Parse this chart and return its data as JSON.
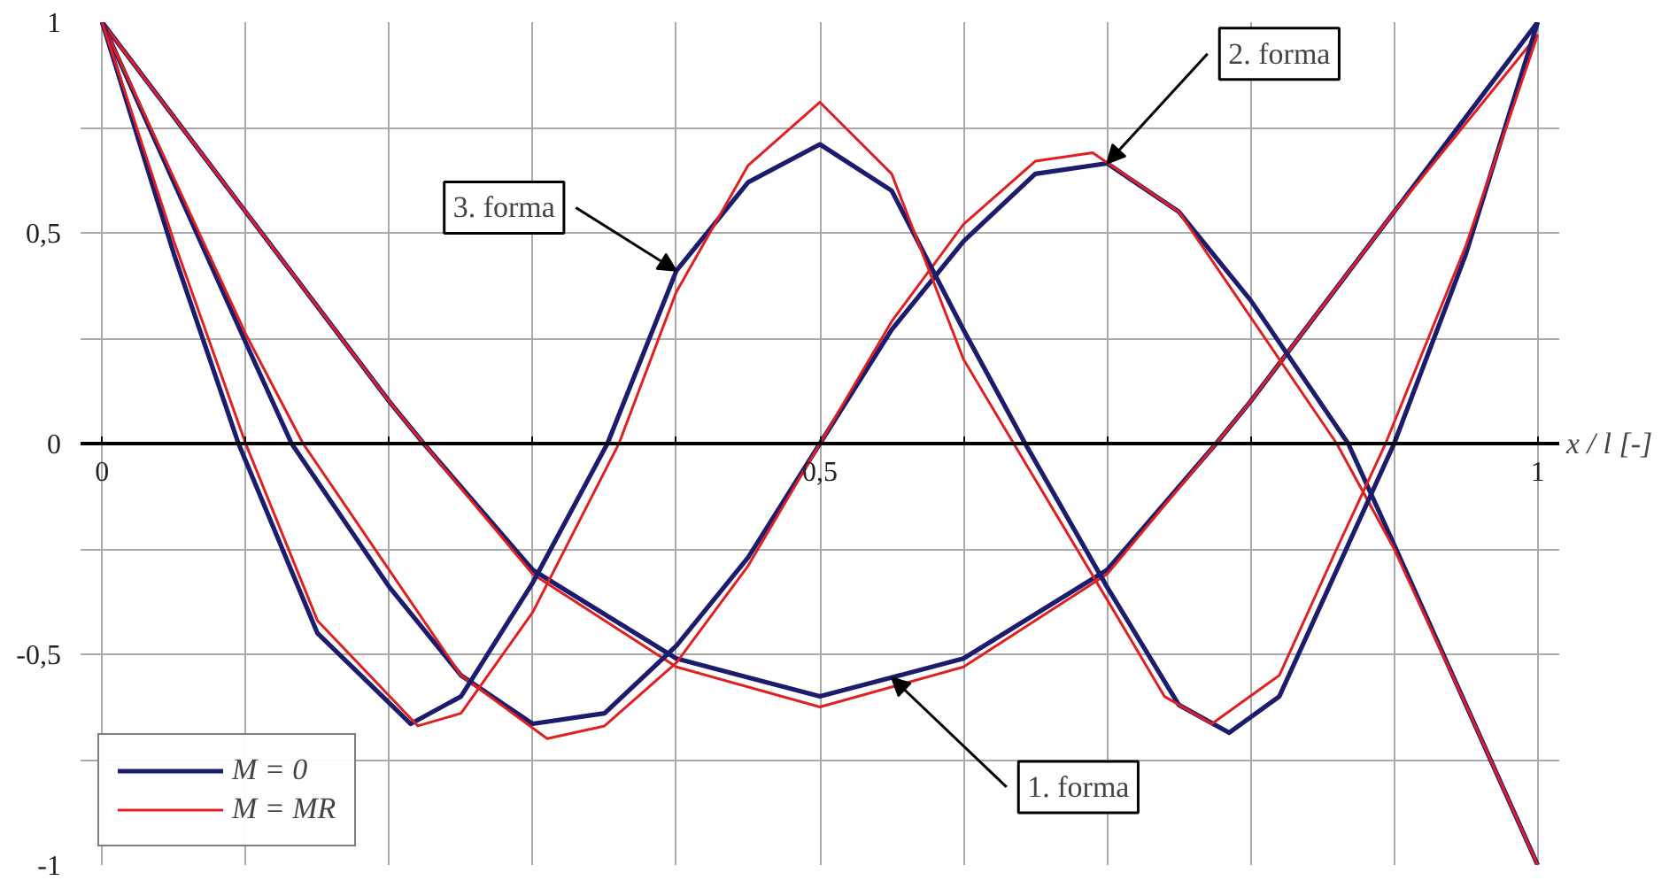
{
  "chart_data": {
    "type": "line",
    "xlabel": "x / l  [-]",
    "xlim": [
      0,
      1
    ],
    "ylim": [
      -1,
      1
    ],
    "xticks": [
      0,
      {
        "value": 0.1,
        "label": null
      },
      {
        "value": 0.2,
        "label": null
      },
      {
        "value": 0.3,
        "label": null
      },
      {
        "value": 0.4,
        "label": null
      },
      {
        "value": 0.5,
        "label": "0,5"
      },
      {
        "value": 0.6,
        "label": null
      },
      {
        "value": 0.7,
        "label": null
      },
      {
        "value": 0.8,
        "label": null
      },
      {
        "value": 0.9,
        "label": null
      },
      1
    ],
    "yticks": [
      -1,
      {
        "value": -0.75,
        "label": null
      },
      {
        "value": -0.5,
        "label": "-0,5"
      },
      {
        "value": -0.25,
        "label": null
      },
      0,
      {
        "value": 0.25,
        "label": null
      },
      {
        "value": 0.5,
        "label": "0,5"
      },
      {
        "value": 0.75,
        "label": null
      },
      1
    ],
    "grid": true,
    "legend": "bottom left",
    "line_style": "solid",
    "series": [
      {
        "name": "M = 0",
        "color": "#1c1c6e",
        "x": [
          0,
          0.1,
          0.2,
          0.224,
          0.3,
          0.4,
          0.5,
          0.6,
          0.7,
          0.776,
          0.8,
          0.9,
          1
        ],
        "values": [
          1,
          0.55,
          0.1,
          0,
          -0.3,
          -0.51,
          -0.6,
          -0.51,
          -0.3,
          0,
          0.1,
          0.55,
          1
        ]
      },
      {
        "name": "M = MR",
        "color": "#e02020",
        "x": [
          0,
          0.1,
          0.2,
          0.224,
          0.3,
          0.4,
          0.5,
          0.6,
          0.7,
          0.776,
          0.8,
          0.9,
          1
        ],
        "values": [
          1,
          0.55,
          0.1,
          0,
          -0.31,
          -0.53,
          -0.625,
          -0.53,
          -0.31,
          0,
          0.1,
          0.55,
          0.97
        ]
      },
      {
        "color": "#1c1c6e",
        "x": [
          0,
          0.05,
          0.1,
          0.132,
          0.2,
          0.25,
          0.3,
          0.35,
          0.4,
          0.45,
          0.5,
          0.55,
          0.6,
          0.65,
          0.7,
          0.75,
          0.8,
          0.868,
          0.9,
          0.95,
          1
        ],
        "values": [
          1,
          0.62,
          0.24,
          0,
          -0.34,
          -0.55,
          -0.665,
          -0.64,
          -0.48,
          -0.27,
          0,
          0.27,
          0.48,
          0.64,
          0.665,
          0.55,
          0.34,
          0,
          -0.24,
          -0.62,
          -1
        ]
      },
      {
        "color": "#e02020",
        "x": [
          0,
          0.05,
          0.1,
          0.14,
          0.2,
          0.25,
          0.31,
          0.35,
          0.4,
          0.45,
          0.5,
          0.55,
          0.6,
          0.65,
          0.69,
          0.75,
          0.8,
          0.86,
          0.9,
          0.95,
          1
        ],
        "values": [
          1,
          0.63,
          0.26,
          0,
          -0.3,
          -0.55,
          -0.7,
          -0.67,
          -0.52,
          -0.29,
          0,
          0.29,
          0.52,
          0.67,
          0.69,
          0.55,
          0.3,
          0,
          -0.25,
          -0.62,
          -1
        ]
      },
      {
        "color": "#1c1c6e",
        "x": [
          0,
          0.05,
          0.095,
          0.15,
          0.215,
          0.25,
          0.3,
          0.352,
          0.4,
          0.45,
          0.5,
          0.55,
          0.6,
          0.643,
          0.7,
          0.75,
          0.785,
          0.82,
          0.86,
          0.9,
          0.95,
          1
        ],
        "values": [
          1,
          0.45,
          0,
          -0.45,
          -0.665,
          -0.6,
          -0.33,
          0,
          0.41,
          0.62,
          0.71,
          0.6,
          0.27,
          0,
          -0.34,
          -0.62,
          -0.686,
          -0.6,
          -0.3,
          0,
          0.45,
          1
        ]
      },
      {
        "color": "#e02020",
        "x": [
          0,
          0.05,
          0.1,
          0.15,
          0.22,
          0.25,
          0.3,
          0.36,
          0.4,
          0.45,
          0.5,
          0.55,
          0.6,
          0.635,
          0.7,
          0.74,
          0.773,
          0.82,
          0.86,
          0.894,
          0.95,
          1
        ],
        "values": [
          1,
          0.48,
          0,
          -0.42,
          -0.67,
          -0.64,
          -0.4,
          0,
          0.36,
          0.66,
          0.81,
          0.64,
          0.2,
          0,
          -0.37,
          -0.6,
          -0.665,
          -0.55,
          -0.25,
          0,
          0.47,
          0.97
        ]
      }
    ],
    "annotations": [
      {
        "text": "1. forma",
        "x": 0.55,
        "y": -0.555
      },
      {
        "text": "2. forma",
        "x": 0.7,
        "y": 0.665
      },
      {
        "text": "3. forma",
        "x": 0.4,
        "y": 0.41
      }
    ]
  }
}
